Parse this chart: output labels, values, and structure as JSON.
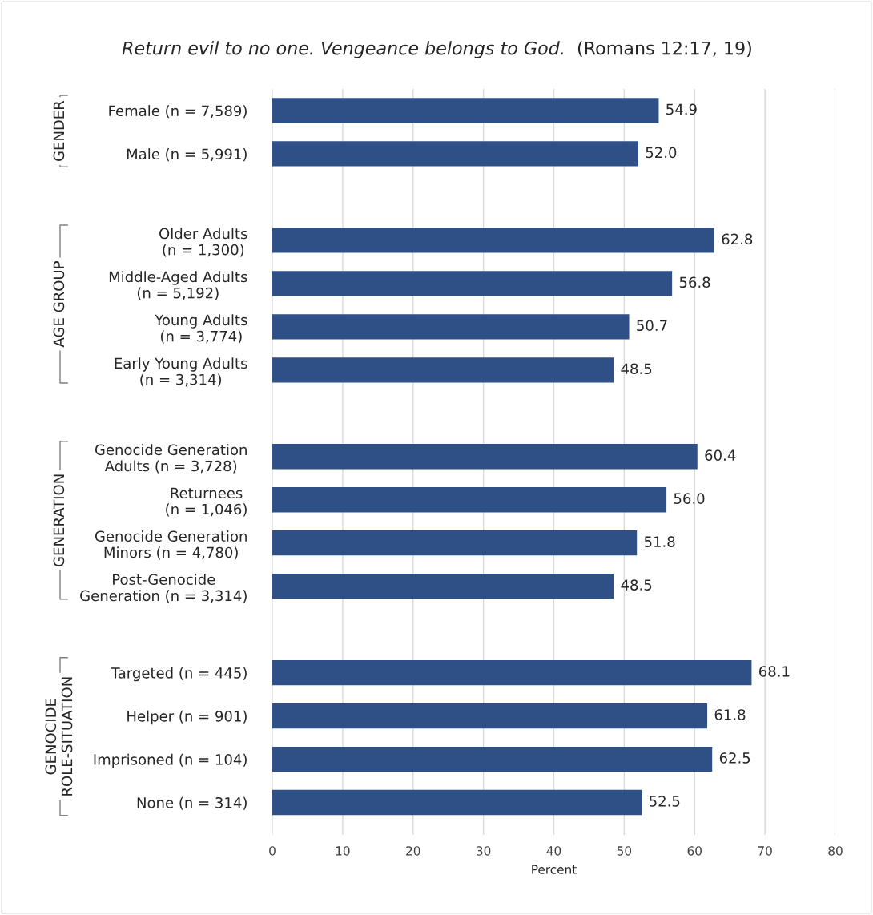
{
  "chart_data": {
    "type": "bar",
    "orientation": "horizontal",
    "title": "Return evil to no one. Vengeance belongs to God.",
    "subtitle": "(Romans 12:17, 19)",
    "xlabel": "Percent",
    "categories": [
      "Female (n = 7,589)",
      "Male (n = 5,991)",
      null,
      "Older Adults\n(n = 1,300)",
      "Middle-Aged Adults\n(n = 5,192)",
      "Young Adults\n(n = 3,774)",
      "Early Young Adults\n(n = 3,314)",
      null,
      "Genocide Generation\nAdults (n = 3,728)",
      "Returnees\n(n = 1,046)",
      "Genocide Generation\nMinors (n = 4,780)",
      "Post-Genocide\nGeneration (n = 3,314)",
      null,
      "Targeted (n = 445)",
      "Helper (n = 901)",
      "Imprisoned (n = 104)",
      "None (n = 314)"
    ],
    "values": [
      54.9,
      52.0,
      null,
      62.8,
      56.8,
      50.7,
      48.5,
      null,
      60.4,
      56.0,
      51.8,
      48.5,
      null,
      68.1,
      61.8,
      62.5,
      52.5
    ],
    "value_labels": [
      "54.9",
      "52.0",
      null,
      "62.8",
      "56.8",
      "50.7",
      "48.5",
      null,
      "60.4",
      "56.0",
      "51.8",
      "48.5",
      null,
      "68.1",
      "61.8",
      "62.5",
      "52.5"
    ],
    "color": "#2f5086",
    "xlim": [
      0,
      80
    ],
    "xticks": [
      0,
      10,
      20,
      30,
      40,
      50,
      60,
      70,
      80
    ],
    "grid": "x",
    "annotations": [
      "GENDER",
      "AGE GROUP",
      "GENERATION",
      "GENOCIDE\nROLE-SITUATION"
    ]
  }
}
